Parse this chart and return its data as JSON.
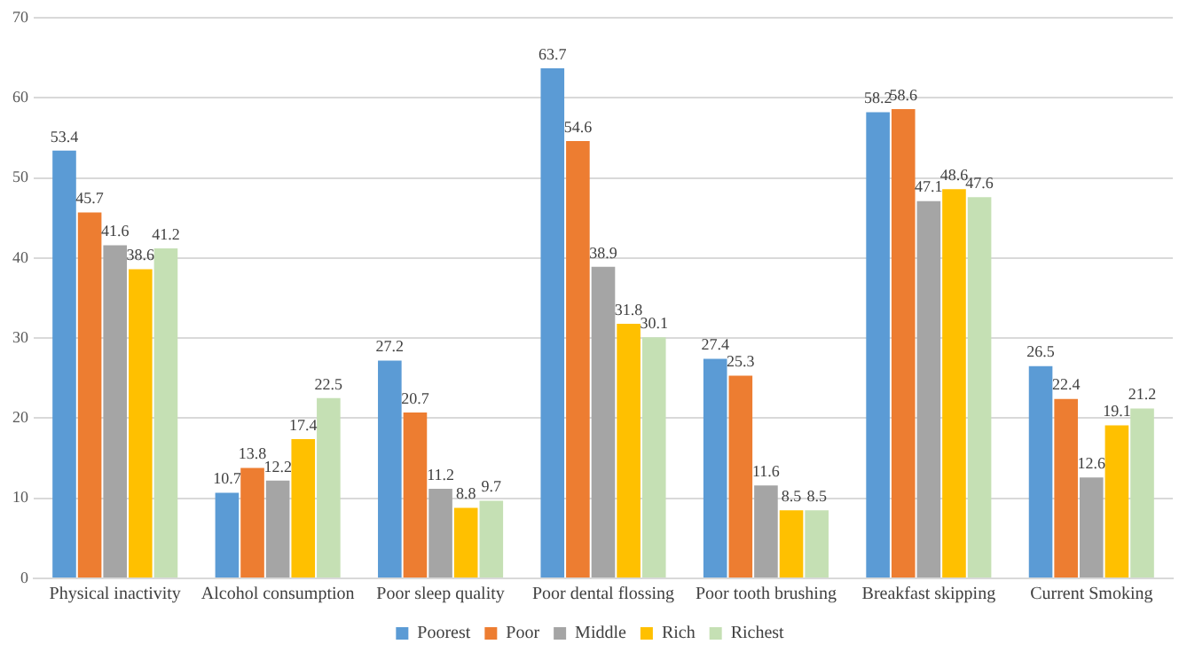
{
  "chart_data": {
    "type": "bar",
    "categories": [
      "Physical inactivity",
      "Alcohol consumption",
      "Poor sleep quality",
      "Poor dental flossing",
      "Poor tooth brushing",
      "Breakfast skipping",
      "Current Smoking"
    ],
    "series": [
      {
        "name": "Poorest",
        "color": "#5b9bd5",
        "values": [
          53.4,
          10.7,
          27.2,
          63.7,
          27.4,
          58.2,
          26.5
        ]
      },
      {
        "name": "Poor",
        "color": "#ed7d31",
        "values": [
          45.7,
          13.8,
          20.7,
          54.6,
          25.3,
          58.6,
          22.4
        ]
      },
      {
        "name": "Middle",
        "color": "#a5a5a5",
        "values": [
          41.6,
          12.2,
          11.2,
          38.9,
          11.6,
          47.1,
          12.6
        ]
      },
      {
        "name": "Rich",
        "color": "#ffc000",
        "values": [
          38.6,
          17.4,
          8.8,
          31.8,
          8.5,
          48.6,
          19.1
        ]
      },
      {
        "name": "Richest",
        "color": "#c5e0b4",
        "values": [
          41.2,
          22.5,
          9.7,
          30.1,
          8.5,
          47.6,
          21.2
        ]
      }
    ],
    "ylim": [
      0,
      70
    ],
    "yticks": [
      0,
      10,
      20,
      30,
      40,
      50,
      60,
      70
    ],
    "grid": "y",
    "legend": "bottom",
    "data_labels": true
  }
}
